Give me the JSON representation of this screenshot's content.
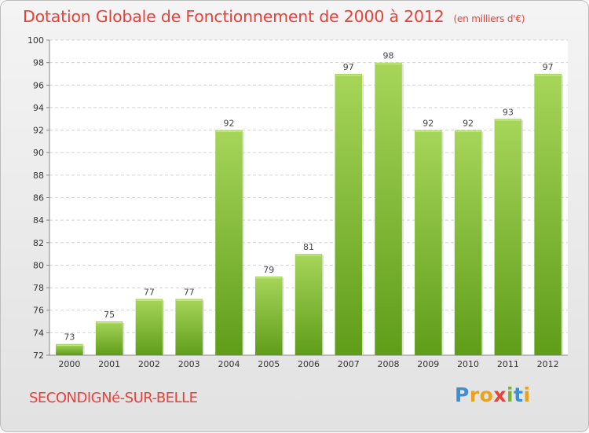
{
  "chart_data": {
    "type": "bar",
    "title": "Dotation Globale de Fonctionnement de 2000 à 2012",
    "subtitle": "(en milliers d'€)",
    "categories": [
      "2000",
      "2001",
      "2002",
      "2003",
      "2004",
      "2005",
      "2006",
      "2007",
      "2008",
      "2009",
      "2010",
      "2011",
      "2012"
    ],
    "values": [
      73,
      75,
      77,
      77,
      92,
      79,
      81,
      97,
      98,
      92,
      92,
      93,
      97
    ],
    "ylim": [
      72,
      100
    ],
    "yticks": [
      72,
      74,
      76,
      78,
      80,
      82,
      84,
      86,
      88,
      90,
      92,
      94,
      96,
      98,
      100
    ],
    "grid": true,
    "bar_color_top": "#a6d55a",
    "bar_color_bottom": "#5f9d19"
  },
  "commune_name": "SECONDIGNé-SUR-BELLE",
  "logo": {
    "letters": [
      "P",
      "r",
      "o",
      "x",
      "i",
      "t",
      "i"
    ],
    "colors": [
      "#3c8fd6",
      "#e8a21b",
      "#e8a21b",
      "#e9413a",
      "#7ab52d",
      "#3c8fd6",
      "#e8a21b"
    ]
  }
}
